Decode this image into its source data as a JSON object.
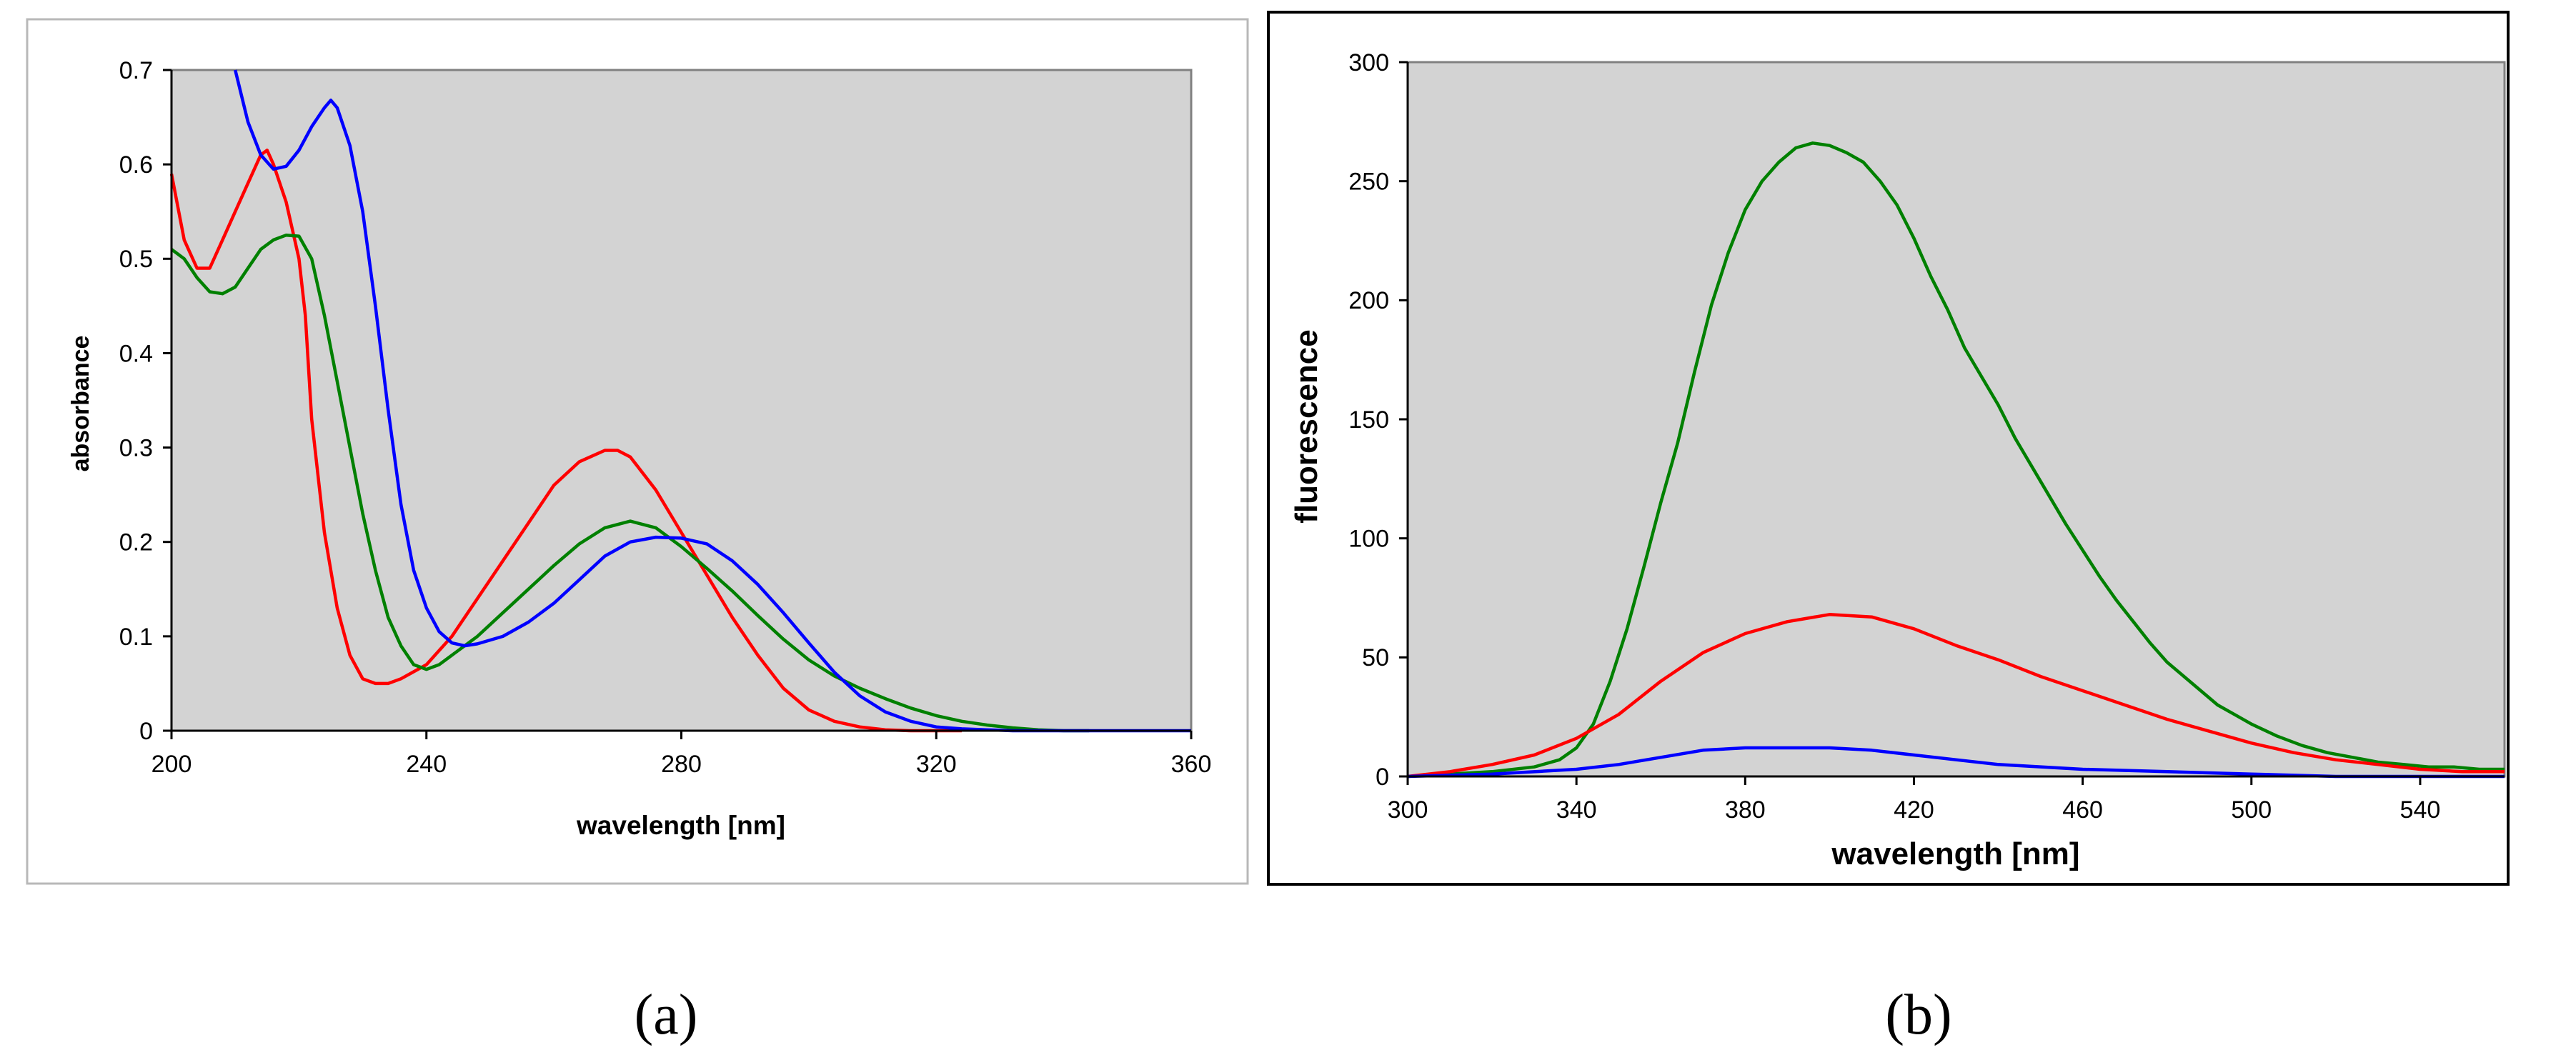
{
  "chart_data": [
    {
      "type": "line",
      "caption": "(a)",
      "xlabel": "wavelength [nm]",
      "ylabel": "absorbance",
      "xlim": [
        200,
        360
      ],
      "ylim": [
        0,
        0.7
      ],
      "xticks": [
        200,
        240,
        280,
        320,
        360
      ],
      "yticks": [
        0,
        0.1,
        0.2,
        0.3,
        0.4,
        0.5,
        0.6,
        0.7
      ],
      "ytick_labels": [
        "0",
        "0.1",
        "0.2",
        "0.3",
        "0.4",
        "0.5",
        "0.6",
        "0.7"
      ],
      "grid": false,
      "plot_background": "#d3d3d3",
      "series": [
        {
          "color": "#ff0000",
          "x": [
            200,
            202,
            204,
            206,
            208,
            210,
            212,
            214,
            215,
            216,
            218,
            220,
            221,
            222,
            224,
            226,
            228,
            230,
            232,
            234,
            236,
            240,
            244,
            248,
            252,
            256,
            260,
            264,
            268,
            270,
            272,
            276,
            280,
            284,
            288,
            292,
            296,
            300,
            304,
            308,
            312,
            316,
            320,
            324
          ],
          "y": [
            0.59,
            0.52,
            0.49,
            0.49,
            0.52,
            0.55,
            0.58,
            0.61,
            0.615,
            0.6,
            0.56,
            0.5,
            0.44,
            0.33,
            0.21,
            0.13,
            0.08,
            0.055,
            0.05,
            0.05,
            0.055,
            0.07,
            0.1,
            0.14,
            0.18,
            0.22,
            0.26,
            0.285,
            0.297,
            0.297,
            0.29,
            0.255,
            0.21,
            0.165,
            0.12,
            0.08,
            0.045,
            0.022,
            0.01,
            0.004,
            0.001,
            0,
            0,
            0
          ]
        },
        {
          "color": "#008000",
          "x": [
            200,
            202,
            204,
            206,
            208,
            210,
            212,
            214,
            216,
            218,
            220,
            222,
            224,
            226,
            228,
            230,
            232,
            234,
            236,
            238,
            240,
            242,
            244,
            248,
            252,
            256,
            260,
            264,
            268,
            272,
            276,
            280,
            284,
            288,
            292,
            296,
            300,
            304,
            308,
            312,
            316,
            320,
            324,
            328,
            332,
            336,
            340,
            344
          ],
          "y": [
            0.51,
            0.5,
            0.48,
            0.465,
            0.463,
            0.47,
            0.49,
            0.51,
            0.52,
            0.525,
            0.524,
            0.5,
            0.44,
            0.37,
            0.3,
            0.23,
            0.17,
            0.12,
            0.09,
            0.07,
            0.065,
            0.07,
            0.08,
            0.1,
            0.125,
            0.15,
            0.175,
            0.198,
            0.215,
            0.222,
            0.215,
            0.195,
            0.172,
            0.148,
            0.122,
            0.097,
            0.075,
            0.058,
            0.045,
            0.034,
            0.024,
            0.016,
            0.01,
            0.006,
            0.003,
            0.001,
            0,
            0
          ]
        },
        {
          "color": "#0000ff",
          "x": [
            210,
            212,
            214,
            216,
            218,
            220,
            222,
            224,
            225,
            226,
            228,
            230,
            232,
            234,
            236,
            238,
            240,
            242,
            244,
            246,
            248,
            252,
            256,
            260,
            264,
            268,
            272,
            276,
            280,
            284,
            288,
            292,
            296,
            300,
            304,
            308,
            312,
            316,
            320,
            324,
            328,
            332,
            340,
            360
          ],
          "y": [
            0.705,
            0.645,
            0.61,
            0.595,
            0.598,
            0.615,
            0.64,
            0.66,
            0.668,
            0.66,
            0.62,
            0.55,
            0.45,
            0.34,
            0.24,
            0.17,
            0.13,
            0.105,
            0.093,
            0.09,
            0.092,
            0.1,
            0.115,
            0.135,
            0.16,
            0.185,
            0.2,
            0.205,
            0.204,
            0.198,
            0.18,
            0.155,
            0.125,
            0.093,
            0.062,
            0.037,
            0.02,
            0.01,
            0.004,
            0.002,
            0.001,
            0,
            0,
            0
          ]
        }
      ]
    },
    {
      "type": "line",
      "caption": "(b)",
      "xlabel": "wavelength [nm]",
      "ylabel": "fluorescence",
      "xlim": [
        300,
        560
      ],
      "ylim": [
        0,
        300
      ],
      "xticks": [
        300,
        340,
        380,
        420,
        460,
        500,
        540
      ],
      "yticks": [
        0,
        50,
        100,
        150,
        200,
        250,
        300
      ],
      "grid": false,
      "plot_background": "#d3d3d3",
      "series": [
        {
          "color": "#008000",
          "x": [
            300,
            310,
            320,
            330,
            336,
            340,
            344,
            348,
            352,
            356,
            360,
            364,
            368,
            372,
            376,
            380,
            384,
            388,
            392,
            396,
            400,
            404,
            408,
            412,
            416,
            420,
            424,
            428,
            432,
            436,
            440,
            444,
            448,
            452,
            456,
            460,
            464,
            468,
            472,
            476,
            480,
            484,
            488,
            492,
            496,
            500,
            506,
            512,
            518,
            524,
            530,
            536,
            542,
            548,
            554,
            560
          ],
          "y": [
            0,
            1,
            2,
            4,
            7,
            12,
            22,
            40,
            62,
            88,
            115,
            140,
            170,
            198,
            220,
            238,
            250,
            258,
            264,
            266,
            265,
            262,
            258,
            250,
            240,
            226,
            210,
            196,
            180,
            168,
            156,
            142,
            130,
            118,
            106,
            95,
            84,
            74,
            65,
            56,
            48,
            42,
            36,
            30,
            26,
            22,
            17,
            13,
            10,
            8,
            6,
            5,
            4,
            4,
            3,
            3
          ]
        },
        {
          "color": "#ff0000",
          "x": [
            300,
            310,
            320,
            330,
            340,
            350,
            360,
            370,
            380,
            390,
            400,
            410,
            420,
            430,
            440,
            450,
            460,
            470,
            480,
            490,
            500,
            510,
            520,
            530,
            540,
            550,
            560
          ],
          "y": [
            0,
            2,
            5,
            9,
            16,
            26,
            40,
            52,
            60,
            65,
            68,
            67,
            62,
            55,
            49,
            42,
            36,
            30,
            24,
            19,
            14,
            10,
            7,
            5,
            3,
            2,
            2
          ]
        },
        {
          "color": "#0000ff",
          "x": [
            300,
            320,
            340,
            350,
            360,
            370,
            380,
            390,
            400,
            410,
            420,
            430,
            440,
            460,
            480,
            500,
            520,
            540,
            560
          ],
          "y": [
            0,
            1,
            3,
            5,
            8,
            11,
            12,
            12,
            12,
            11,
            9,
            7,
            5,
            3,
            2,
            1,
            0,
            0,
            0
          ]
        }
      ]
    }
  ]
}
